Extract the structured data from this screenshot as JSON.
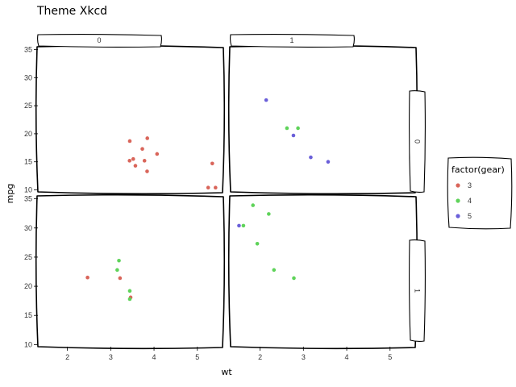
{
  "chart_data": {
    "type": "scatter",
    "title": "Theme Xkcd",
    "xlabel": "wt",
    "ylabel": "mpg",
    "xlim": [
      1.3,
      5.6
    ],
    "ylim": [
      9.5,
      35.5
    ],
    "x_ticks": [
      2,
      3,
      4,
      5
    ],
    "y_ticks": [
      10,
      15,
      20,
      25,
      30,
      35
    ],
    "grid": false,
    "facet_cols": {
      "variable": "am",
      "levels": [
        "0",
        "1"
      ]
    },
    "facet_rows": {
      "variable": "vs",
      "levels": [
        "0",
        "1"
      ]
    },
    "legend": {
      "title": "factor(gear)",
      "placement": "right",
      "entries": [
        {
          "label": "3",
          "color": "#d9655a"
        },
        {
          "label": "4",
          "color": "#5fd35a"
        },
        {
          "label": "5",
          "color": "#6a5fd9"
        }
      ]
    },
    "panels": [
      {
        "row": "0",
        "col": "0",
        "points": [
          {
            "x": 3.44,
            "y": 18.7,
            "gear": "3"
          },
          {
            "x": 3.57,
            "y": 14.3,
            "gear": "3"
          },
          {
            "x": 4.07,
            "y": 16.4,
            "gear": "3"
          },
          {
            "x": 3.73,
            "y": 17.3,
            "gear": "3"
          },
          {
            "x": 3.78,
            "y": 15.2,
            "gear": "3"
          },
          {
            "x": 5.25,
            "y": 10.4,
            "gear": "3"
          },
          {
            "x": 5.42,
            "y": 10.4,
            "gear": "3"
          },
          {
            "x": 5.345,
            "y": 14.7,
            "gear": "3"
          },
          {
            "x": 3.52,
            "y": 15.5,
            "gear": "3"
          },
          {
            "x": 3.435,
            "y": 15.2,
            "gear": "3"
          },
          {
            "x": 3.84,
            "y": 13.3,
            "gear": "3"
          },
          {
            "x": 3.845,
            "y": 19.2,
            "gear": "3"
          }
        ]
      },
      {
        "row": "0",
        "col": "1",
        "points": [
          {
            "x": 2.62,
            "y": 21.0,
            "gear": "4"
          },
          {
            "x": 2.875,
            "y": 21.0,
            "gear": "4"
          },
          {
            "x": 2.14,
            "y": 26.0,
            "gear": "5"
          },
          {
            "x": 3.17,
            "y": 15.8,
            "gear": "5"
          },
          {
            "x": 2.77,
            "y": 19.7,
            "gear": "5"
          },
          {
            "x": 3.57,
            "y": 15.0,
            "gear": "5"
          }
        ]
      },
      {
        "row": "1",
        "col": "0",
        "points": [
          {
            "x": 3.215,
            "y": 21.4,
            "gear": "3"
          },
          {
            "x": 3.46,
            "y": 18.1,
            "gear": "3"
          },
          {
            "x": 2.465,
            "y": 21.5,
            "gear": "3"
          },
          {
            "x": 3.19,
            "y": 24.4,
            "gear": "4"
          },
          {
            "x": 3.15,
            "y": 22.8,
            "gear": "4"
          },
          {
            "x": 3.44,
            "y": 19.2,
            "gear": "4"
          },
          {
            "x": 3.44,
            "y": 17.8,
            "gear": "4"
          }
        ]
      },
      {
        "row": "1",
        "col": "1",
        "points": [
          {
            "x": 2.32,
            "y": 22.8,
            "gear": "4"
          },
          {
            "x": 2.2,
            "y": 32.4,
            "gear": "4"
          },
          {
            "x": 1.615,
            "y": 30.4,
            "gear": "4"
          },
          {
            "x": 1.835,
            "y": 33.9,
            "gear": "4"
          },
          {
            "x": 1.935,
            "y": 27.3,
            "gear": "4"
          },
          {
            "x": 2.78,
            "y": 21.4,
            "gear": "4"
          },
          {
            "x": 1.513,
            "y": 30.4,
            "gear": "5"
          }
        ]
      }
    ]
  }
}
